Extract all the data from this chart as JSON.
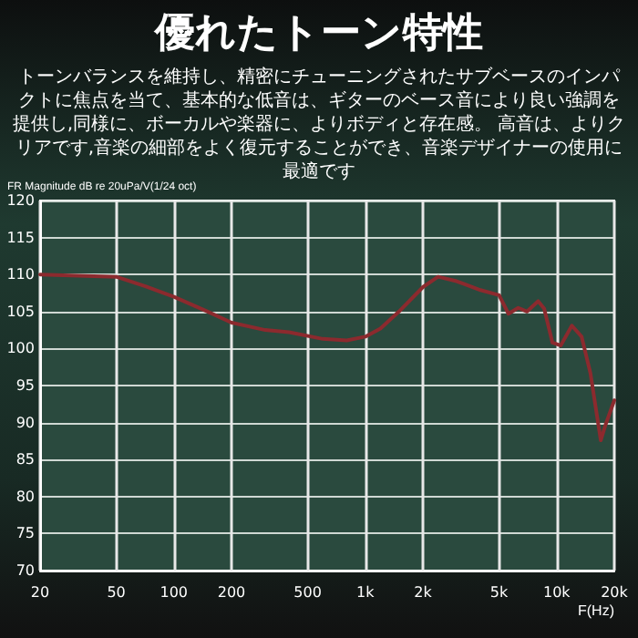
{
  "chart_data": {
    "type": "line",
    "title": "優れたトーン特性",
    "subtitle": "トーンバランスを維持し、精密にチューニングされたサブベースのインパクトに焦点を当て、基本的な低音は、ギターのベース音により良い強調を提供し,同様に、ボーカルや楽器に、よりボディと存在感。 高音は、よりクリアです,音楽の細部をよく復元することができ、音楽デザイナーの使用に最適です",
    "ylabel": "FR Magnitude dB re 20uPa/V(1/24 oct)",
    "xlabel": "F(Hz)",
    "log": "x",
    "grid": true,
    "marker": "none",
    "line_style": "solid",
    "xlim": [
      20,
      20000
    ],
    "xticks": [
      20,
      50,
      100,
      200,
      500,
      {
        "value": 1000,
        "label": "1k"
      },
      {
        "value": 2000,
        "label": "2k"
      },
      {
        "value": 5000,
        "label": "5k"
      },
      {
        "value": 10000,
        "label": "10k"
      },
      {
        "value": 20000,
        "label": "20k"
      }
    ],
    "ylim": [
      70,
      120
    ],
    "yticks": [
      70,
      75,
      80,
      85,
      90,
      95,
      100,
      105,
      110,
      115,
      120
    ],
    "series": [
      {
        "color": "#8c2a2e",
        "x": [
          20,
          50,
          71,
          100,
          150,
          200,
          300,
          400,
          600,
          800,
          1000,
          1200,
          1500,
          2000,
          2400,
          3000,
          4000,
          5000,
          5600,
          6300,
          7000,
          8000,
          8600,
          9500,
          10500,
          12000,
          13500,
          15000,
          17000,
          18000,
          20000
        ],
        "values": [
          110,
          109.7,
          108.4,
          107,
          105,
          103.5,
          102.5,
          102.2,
          101.3,
          101.1,
          101.6,
          102.7,
          105,
          108.3,
          109.7,
          109.1,
          107.9,
          107.2,
          104.7,
          105.5,
          105,
          106.4,
          105.4,
          100.8,
          100.4,
          103.1,
          101.6,
          96.7,
          87.6,
          89.7,
          93
        ]
      }
    ]
  }
}
